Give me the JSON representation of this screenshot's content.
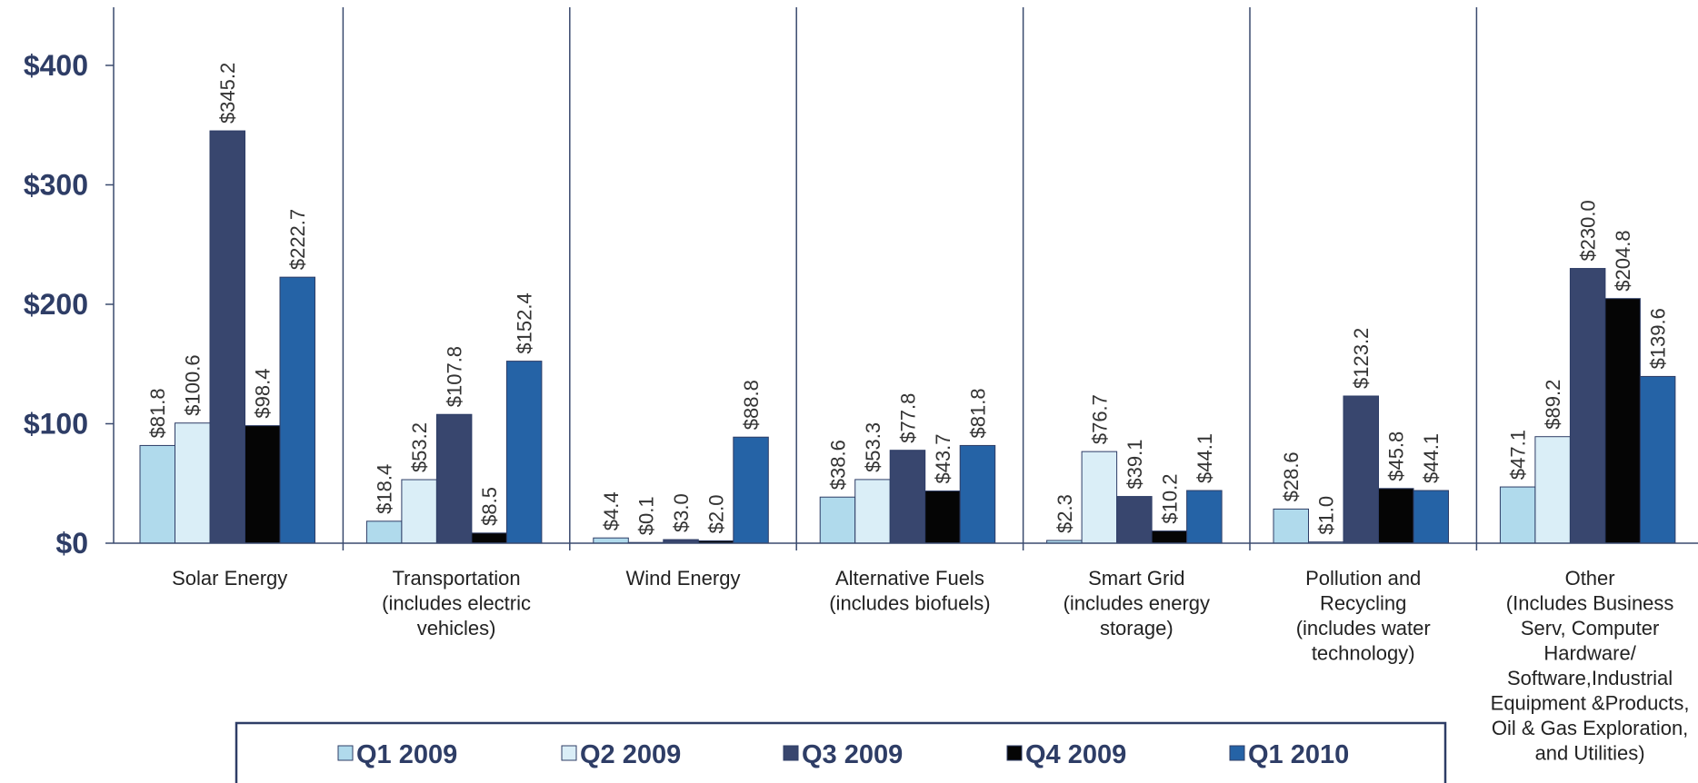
{
  "chart_data": {
    "type": "bar",
    "title": "",
    "xlabel": "",
    "ylabel": "",
    "ylim": [
      0,
      400
    ],
    "yticks": [
      "$0",
      "$100",
      "$200",
      "$300",
      "$400"
    ],
    "grid": false,
    "legend_position": "bottom",
    "categories": [
      [
        "Solar Energy"
      ],
      [
        "Transportation",
        "(includes electric",
        "vehicles)"
      ],
      [
        "Wind Energy"
      ],
      [
        "Alternative Fuels",
        "(includes biofuels)"
      ],
      [
        "Smart Grid",
        "(includes energy",
        "storage)"
      ],
      [
        "Pollution and",
        "Recycling",
        "(includes water",
        "technology)"
      ],
      [
        "Other",
        "(Includes Business",
        "Serv,  Computer",
        "Hardware/",
        "Software,Industrial",
        "Equipment &Products,",
        "Oil & Gas Exploration,",
        "and Utilities)"
      ]
    ],
    "series": [
      {
        "name": "Q1 2009",
        "color": "#b0daec",
        "values": [
          81.8,
          18.4,
          4.4,
          38.6,
          2.3,
          28.6,
          47.1
        ],
        "labels": [
          "$81.8",
          "$18.4",
          "$4.4",
          "$38.6",
          "$2.3",
          "$28.6",
          "$47.1"
        ]
      },
      {
        "name": "Q2 2009",
        "color": "#daeef7",
        "values": [
          100.6,
          53.2,
          0.1,
          53.3,
          76.7,
          1.0,
          89.2
        ],
        "labels": [
          "$100.6",
          "$53.2",
          "$0.1",
          "$53.3",
          "$76.7",
          "$1.0",
          "$89.2"
        ]
      },
      {
        "name": "Q3 2009",
        "color": "#38466e",
        "values": [
          345.2,
          107.8,
          3.0,
          77.8,
          39.1,
          123.2,
          230.0
        ],
        "labels": [
          "$345.2",
          "$107.8",
          "$3.0",
          "$77.8",
          "$39.1",
          "$123.2",
          "$230.0"
        ]
      },
      {
        "name": "Q4 2009",
        "color": "#050505",
        "values": [
          98.4,
          8.5,
          2.0,
          43.7,
          10.2,
          45.8,
          204.8
        ],
        "labels": [
          "$98.4",
          "$8.5",
          "$2.0",
          "$43.7",
          "$10.2",
          "$45.8",
          "$204.8"
        ]
      },
      {
        "name": "Q1 2010",
        "color": "#2563a6",
        "values": [
          222.7,
          152.4,
          88.8,
          81.8,
          44.1,
          44.1,
          139.6
        ],
        "labels": [
          "$222.7",
          "$152.4",
          "$88.8",
          "$81.8",
          "$44.1",
          "$44.1",
          "$139.6"
        ]
      }
    ]
  }
}
